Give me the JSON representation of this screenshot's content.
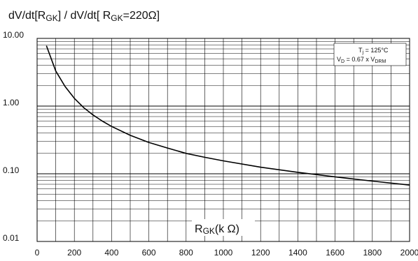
{
  "chart_data": {
    "type": "line",
    "title": {
      "main": "dV/dt[R",
      "sub1": "GK",
      "mid": "] / dV/dt[ R",
      "sub2": "GK",
      "tail": "=220Ω]"
    },
    "xlabel": {
      "main": "R",
      "sub": "GK",
      "unit": "(k Ω)"
    },
    "ylabel": "",
    "x_scale": "linear",
    "y_scale": "log",
    "xlim": [
      0,
      2000
    ],
    "ylim": [
      0.01,
      10
    ],
    "x_ticks": [
      0,
      200,
      400,
      600,
      800,
      1000,
      1200,
      1400,
      1600,
      1800,
      2000
    ],
    "x_tick_labels": [
      "0",
      "200",
      "400",
      "600",
      "800",
      "1000",
      "1200",
      "1400",
      "1600",
      "1800",
      "2000"
    ],
    "y_ticks": [
      0.01,
      0.1,
      1,
      10
    ],
    "y_tick_labels": [
      "0.01",
      "0.10",
      "1.00",
      "10.00"
    ],
    "grid": true,
    "legend_position": "top-right",
    "annotations": {
      "line1": {
        "main": "T",
        "sub": "j",
        "tail": " = 125°C"
      },
      "line2": {
        "main": "V",
        "sub": "D",
        "mid": " = 0.67 x V",
        "sub2": "DRM"
      }
    },
    "series": [
      {
        "color": "#000000",
        "x": [
          50,
          100,
          150,
          200,
          250,
          300,
          350,
          400,
          500,
          600,
          700,
          800,
          900,
          1000,
          1200,
          1400,
          1600,
          1800,
          2000
        ],
        "y": [
          7.8,
          3.3,
          1.95,
          1.3,
          0.95,
          0.74,
          0.6,
          0.5,
          0.37,
          0.29,
          0.24,
          0.2,
          0.175,
          0.155,
          0.125,
          0.105,
          0.09,
          0.078,
          0.068
        ]
      }
    ]
  }
}
